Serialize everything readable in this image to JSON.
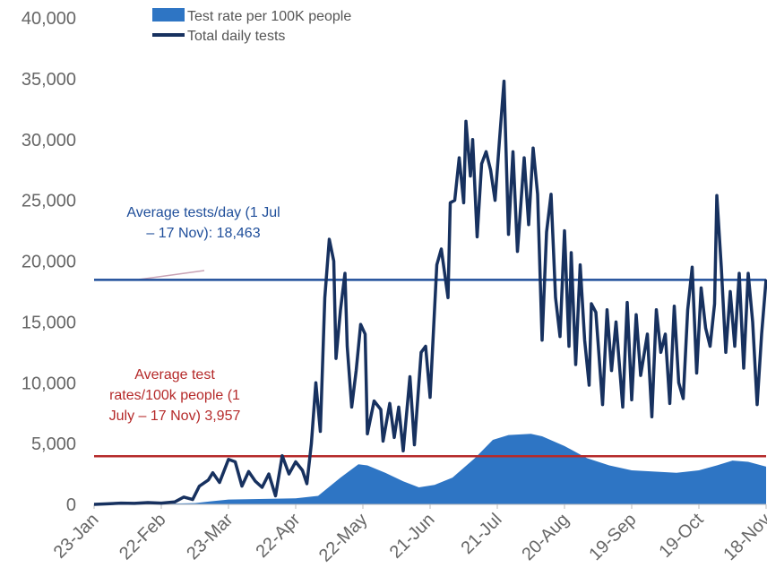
{
  "chart_data": {
    "type": "line",
    "x": [
      0,
      6,
      12,
      18,
      24,
      30,
      36,
      40,
      44,
      47,
      51,
      53,
      56,
      60,
      63,
      66,
      69,
      72,
      75,
      78,
      81,
      84,
      87,
      90,
      93,
      95,
      97,
      99,
      101,
      103,
      105,
      107,
      108,
      110,
      112,
      113,
      115,
      117,
      119,
      121,
      122,
      125,
      128,
      129,
      132,
      134,
      136,
      138,
      141,
      143,
      146,
      148,
      150,
      153,
      155,
      158,
      159,
      161,
      163,
      165,
      166,
      168,
      169,
      171,
      173,
      175,
      177,
      179,
      181,
      183,
      185,
      187,
      189,
      192,
      194,
      196,
      198,
      200,
      202,
      204,
      206,
      208,
      210,
      212,
      213,
      215,
      217,
      219,
      221,
      222,
      224,
      227,
      229,
      231,
      233,
      236,
      238,
      240,
      242,
      244,
      247,
      249,
      251,
      253,
      255,
      257,
      259,
      261,
      263,
      265,
      267,
      269,
      271,
      273,
      275,
      277,
      278,
      280,
      282,
      284,
      286,
      288,
      290,
      292,
      294,
      296,
      298,
      300
    ],
    "series": [
      {
        "name": "Total daily tests",
        "kind": "line",
        "color": "#17315f",
        "values": [
          0,
          50,
          100,
          80,
          150,
          100,
          200,
          600,
          400,
          1500,
          2000,
          2600,
          1800,
          3700,
          3500,
          1500,
          2700,
          1900,
          1400,
          2500,
          700,
          4000,
          2500,
          3500,
          2800,
          1700,
          5000,
          10000,
          6000,
          17000,
          21800,
          20000,
          12000,
          16000,
          19000,
          13000,
          8000,
          11000,
          14800,
          14000,
          5800,
          8500,
          7800,
          5200,
          8300,
          5500,
          8000,
          4400,
          10500,
          4900,
          12500,
          13000,
          8800,
          19700,
          21000,
          17000,
          24800,
          25000,
          28500,
          24800,
          31500,
          27000,
          30000,
          22000,
          28000,
          29000,
          27500,
          25000,
          30000,
          34800,
          22200,
          29000,
          20800,
          28500,
          23000,
          29300,
          25500,
          13500,
          22400,
          25500,
          17000,
          13800,
          22500,
          13000,
          20700,
          11500,
          19700,
          13500,
          9800,
          16500,
          15800,
          8200,
          16000,
          11000,
          15000,
          8000,
          16600,
          8600,
          15600,
          10600,
          14000,
          7200,
          16000,
          12500,
          14000,
          8300,
          16300,
          10000,
          8700,
          16000,
          19500,
          10800,
          17800,
          14500,
          13000,
          16500,
          25400,
          19500,
          12500,
          17500,
          13000,
          19000,
          11200,
          19000,
          15000,
          8200,
          14000,
          18500
        ]
      },
      {
        "name": "Test rate per 100K people",
        "kind": "area",
        "color": "#2e75c4",
        "x": [
          0,
          30,
          45,
          52,
          60,
          90,
          100,
          110,
          118,
          122,
          130,
          138,
          145,
          152,
          160,
          170,
          178,
          185,
          195,
          200,
          210,
          220,
          230,
          240,
          250,
          260,
          270,
          278,
          285,
          292,
          300
        ],
        "values": [
          0,
          50,
          100,
          250,
          400,
          500,
          700,
          2200,
          3300,
          3200,
          2600,
          1900,
          1400,
          1600,
          2200,
          3800,
          5300,
          5700,
          5800,
          5600,
          4800,
          3800,
          3200,
          2800,
          2700,
          2600,
          2800,
          3200,
          3600,
          3500,
          3100
        ]
      }
    ],
    "xlim": [
      0,
      300
    ],
    "xticks": [
      {
        "value": 0,
        "label": "23-Jan"
      },
      {
        "value": 30,
        "label": "22-Feb"
      },
      {
        "value": 60,
        "label": "23-Mar"
      },
      {
        "value": 90,
        "label": "22-Apr"
      },
      {
        "value": 120,
        "label": "22-May"
      },
      {
        "value": 150,
        "label": "21-Jun"
      },
      {
        "value": 180,
        "label": "21-Jul"
      },
      {
        "value": 210,
        "label": "20-Aug"
      },
      {
        "value": 240,
        "label": "19-Sep"
      },
      {
        "value": 270,
        "label": "19-Oct"
      },
      {
        "value": 300,
        "label": "18-Nov"
      }
    ],
    "ylim": [
      0,
      40000
    ],
    "yticks": [
      0,
      {
        "value": 5000,
        "label": "5,000"
      },
      {
        "value": 10000,
        "label": "10,000"
      },
      {
        "value": 15000,
        "label": "15,000"
      },
      {
        "value": 20000,
        "label": "20,000"
      },
      {
        "value": 25000,
        "label": "25,000"
      },
      {
        "value": 30000,
        "label": "30,000"
      },
      {
        "value": 35000,
        "label": "35,000"
      },
      {
        "value": 40000,
        "label": "40,000"
      }
    ],
    "reference_lines": [
      {
        "value": 18463,
        "color": "#1f4e9a",
        "label": [
          "Average tests/day (1 Jul",
          "– 17 Nov): 18,463"
        ]
      },
      {
        "value": 3957,
        "color": "#b52a2a",
        "label": [
          "Average test",
          "rates/100k people  (1",
          "July – 17 Nov) 3,957"
        ]
      }
    ]
  }
}
